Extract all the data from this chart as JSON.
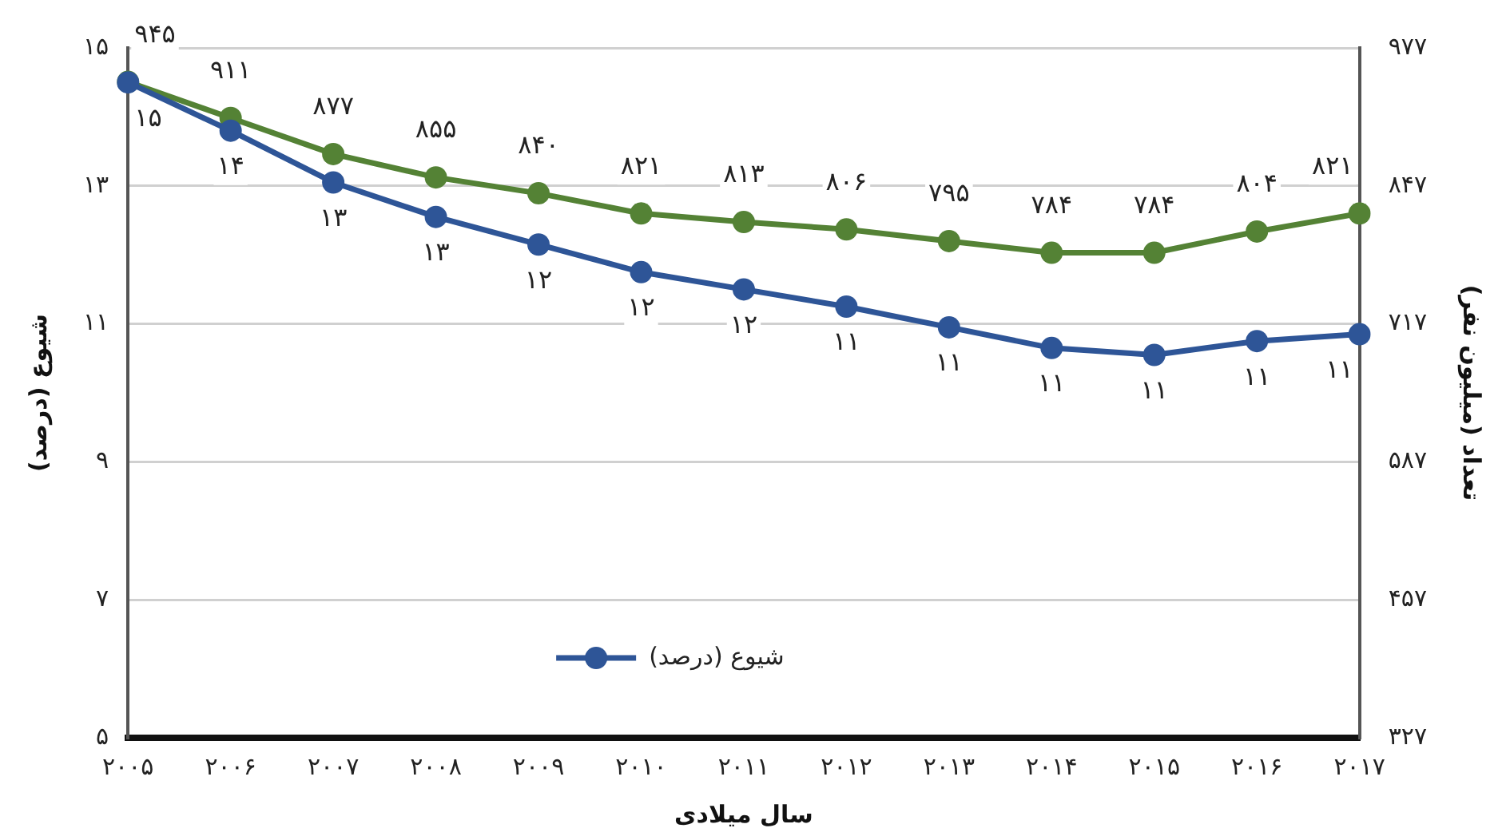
{
  "chart_data": {
    "type": "line",
    "xlabel": "سال میلادی",
    "ylabel": "شیوع (درصد)",
    "y2label": "تعداد (میلیون نفر)",
    "categories": [
      "۲۰۰۵",
      "۲۰۰۶",
      "۲۰۰۷",
      "۲۰۰۸",
      "۲۰۰۹",
      "۲۰۱۰",
      "۲۰۱۱",
      "۲۰۱۲",
      "۲۰۱۳",
      "۲۰۱۴",
      "۲۰۱۵",
      "۲۰۱۶",
      "۲۰۱۷"
    ],
    "series": [
      {
        "name": "شیوع (درصد)",
        "color": "#2e5597",
        "values": [
          14.5,
          13.8,
          13.05,
          12.55,
          12.15,
          11.75,
          11.5,
          11.25,
          10.95,
          10.65,
          10.55,
          10.75,
          10.85
        ],
        "value_labels": [
          "۱۵",
          "۱۴",
          "۱۳",
          "۱۳",
          "۱۲",
          "۱۲",
          "۱۲",
          "۱۱",
          "۱۱",
          "۱۱",
          "۱۱",
          "۱۱",
          "۱۱"
        ]
      },
      {
        "color": "#548235",
        "axis": "y2",
        "values": [
          945,
          911,
          877,
          855,
          840,
          821,
          813,
          806,
          795,
          784,
          784,
          804,
          821
        ],
        "value_labels": [
          "۹۴۵",
          "۹۱۱",
          "۸۷۷",
          "۸۵۵",
          "۸۴۰",
          "۸۲۱",
          "۸۱۳",
          "۸۰۶",
          "۷۹۵",
          "۷۸۴",
          "۷۸۴",
          "۸۰۴",
          "۸۲۱"
        ]
      }
    ],
    "ylim": [
      5,
      15
    ],
    "yticks": [
      {
        "value": 5,
        "label": "۵"
      },
      {
        "value": 7,
        "label": "۷"
      },
      {
        "value": 9,
        "label": "۹"
      },
      {
        "value": 11,
        "label": "۱۱"
      },
      {
        "value": 13,
        "label": "۱۳"
      },
      {
        "value": 15,
        "label": "۱۵"
      }
    ],
    "y2lim": [
      327,
      977
    ],
    "y2ticks": [
      {
        "value": 327,
        "label": "۳۲۷"
      },
      {
        "value": 457,
        "label": "۴۵۷"
      },
      {
        "value": 587,
        "label": "۵۸۷"
      },
      {
        "value": 717,
        "label": "۷۱۷"
      },
      {
        "value": 847,
        "label": "۸۴۷"
      },
      {
        "value": 977,
        "label": "۹۷۷"
      }
    ],
    "grid": "y",
    "legend": "bottom",
    "marker": "circle",
    "line_style": "solid"
  }
}
